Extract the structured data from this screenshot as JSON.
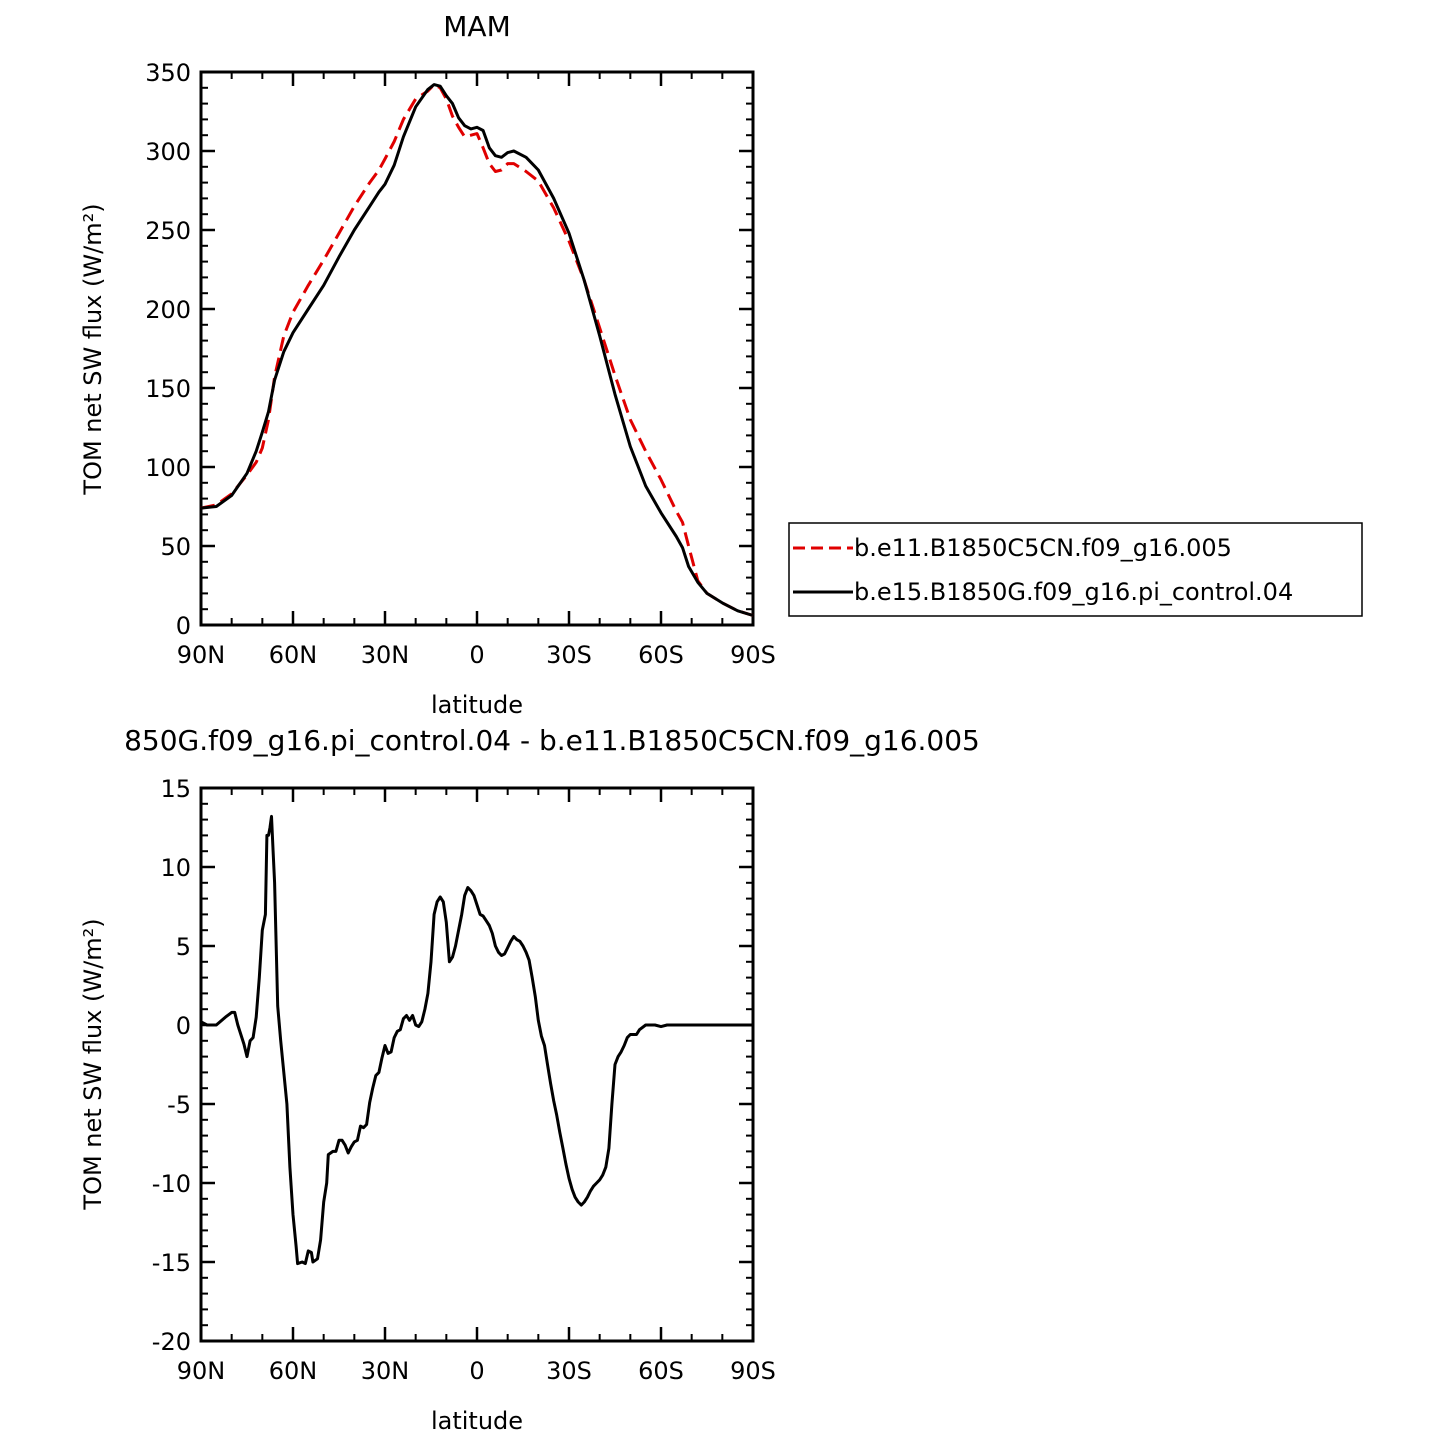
{
  "chart_data": [
    {
      "type": "line",
      "title": "MAM",
      "xlabel": "latitude",
      "ylabel": "TOM net SW flux (W/m²)",
      "x_ticks": [
        "90N",
        "60N",
        "30N",
        "0",
        "30S",
        "60S",
        "90S"
      ],
      "y_ticks": [
        "0",
        "50",
        "100",
        "150",
        "200",
        "250",
        "300",
        "350"
      ],
      "xlim": [
        90,
        -90
      ],
      "ylim": [
        0,
        350
      ],
      "legend_position": "right",
      "series": [
        {
          "name": "b.e11.B1850C5CN.f09_g16.005",
          "color": "#e00000",
          "dash": "dashed",
          "points": [
            [
              90,
              74
            ],
            [
              85,
              76
            ],
            [
              80,
              83
            ],
            [
              75,
              95
            ],
            [
              72,
              103
            ],
            [
              70,
              112
            ],
            [
              68,
              130
            ],
            [
              66,
              157
            ],
            [
              63,
              183
            ],
            [
              60,
              198
            ],
            [
              55,
              215
            ],
            [
              50,
              231
            ],
            [
              45,
              248
            ],
            [
              40,
              265
            ],
            [
              35,
              280
            ],
            [
              32,
              288
            ],
            [
              30,
              295
            ],
            [
              27,
              306
            ],
            [
              24,
              320
            ],
            [
              20,
              333
            ],
            [
              16,
              338
            ],
            [
              14,
              342
            ],
            [
              12,
              340
            ],
            [
              10,
              333
            ],
            [
              8,
              322
            ],
            [
              6,
              315
            ],
            [
              4,
              309
            ],
            [
              0,
              311
            ],
            [
              -2,
              302
            ],
            [
              -4,
              292
            ],
            [
              -6,
              287
            ],
            [
              -8,
              288
            ],
            [
              -10,
              292
            ],
            [
              -12,
              292
            ],
            [
              -16,
              287
            ],
            [
              -20,
              281
            ],
            [
              -25,
              264
            ],
            [
              -30,
              243
            ],
            [
              -35,
              218
            ],
            [
              -40,
              188
            ],
            [
              -45,
              158
            ],
            [
              -50,
              130
            ],
            [
              -55,
              110
            ],
            [
              -60,
              92
            ],
            [
              -65,
              72
            ],
            [
              -67,
              65
            ],
            [
              -69,
              50
            ],
            [
              -72,
              28
            ],
            [
              -75,
              20
            ],
            [
              -80,
              14
            ],
            [
              -85,
              9
            ],
            [
              -90,
              6
            ]
          ]
        },
        {
          "name": "b.e15.B1850G.f09_g16.pi_control.04",
          "color": "#000000",
          "dash": "solid",
          "points": [
            [
              90,
              74
            ],
            [
              85,
              75
            ],
            [
              80,
              82
            ],
            [
              75,
              96
            ],
            [
              72,
              110
            ],
            [
              70,
              122
            ],
            [
              68,
              135
            ],
            [
              66,
              155
            ],
            [
              63,
              173
            ],
            [
              60,
              185
            ],
            [
              55,
              200
            ],
            [
              50,
              215
            ],
            [
              45,
              233
            ],
            [
              40,
              250
            ],
            [
              35,
              265
            ],
            [
              32,
              274
            ],
            [
              30,
              279
            ],
            [
              27,
              291
            ],
            [
              24,
              309
            ],
            [
              20,
              328
            ],
            [
              16,
              339
            ],
            [
              14,
              342
            ],
            [
              12,
              341
            ],
            [
              10,
              335
            ],
            [
              8,
              330
            ],
            [
              6,
              321
            ],
            [
              4,
              316
            ],
            [
              2,
              314
            ],
            [
              0,
              315
            ],
            [
              -2,
              313
            ],
            [
              -4,
              302
            ],
            [
              -6,
              297
            ],
            [
              -8,
              296
            ],
            [
              -10,
              299
            ],
            [
              -12,
              300
            ],
            [
              -16,
              296
            ],
            [
              -20,
              288
            ],
            [
              -25,
              270
            ],
            [
              -30,
              248
            ],
            [
              -35,
              218
            ],
            [
              -40,
              183
            ],
            [
              -45,
              146
            ],
            [
              -50,
              113
            ],
            [
              -55,
              88
            ],
            [
              -60,
              71
            ],
            [
              -65,
              56
            ],
            [
              -67,
              49
            ],
            [
              -69,
              37
            ],
            [
              -72,
              27
            ],
            [
              -75,
              20
            ],
            [
              -80,
              14
            ],
            [
              -85,
              9
            ],
            [
              -90,
              6
            ]
          ]
        }
      ]
    },
    {
      "type": "line",
      "title": "850G.f09_g16.pi_control.04 - b.e11.B1850C5CN.f09_g16.005",
      "xlabel": "latitude",
      "ylabel": "TOM net SW flux (W/m²)",
      "x_ticks": [
        "90N",
        "60N",
        "30N",
        "0",
        "30S",
        "60S",
        "90S"
      ],
      "y_ticks": [
        "15",
        "10",
        "5",
        "0",
        "-5",
        "-10",
        "-15",
        "-20"
      ],
      "xlim": [
        90,
        -90
      ],
      "ylim": [
        -20,
        15
      ],
      "series": [
        {
          "color": "#000000",
          "dash": "solid",
          "points": [
            [
              90,
              0.2
            ],
            [
              88,
              0
            ],
            [
              85,
              0
            ],
            [
              82,
              0.5
            ],
            [
              80,
              0.8
            ],
            [
              79,
              0.8
            ],
            [
              78,
              0
            ],
            [
              76,
              -1.2
            ],
            [
              75,
              -2
            ],
            [
              74,
              -1
            ],
            [
              73,
              -0.8
            ],
            [
              72,
              0.5
            ],
            [
              71,
              3
            ],
            [
              70,
              6
            ],
            [
              69,
              7
            ],
            [
              68.5,
              12
            ],
            [
              68,
              12
            ],
            [
              67.5,
              12.5
            ],
            [
              67,
              13.2
            ],
            [
              66.5,
              11
            ],
            [
              66,
              9
            ],
            [
              65,
              1.2
            ],
            [
              64,
              -1
            ],
            [
              62,
              -5
            ],
            [
              61,
              -9
            ],
            [
              60,
              -12
            ],
            [
              59,
              -14
            ],
            [
              58.5,
              -15.1
            ],
            [
              57,
              -15
            ],
            [
              56,
              -15.1
            ],
            [
              55,
              -14.3
            ],
            [
              54,
              -14.4
            ],
            [
              53.5,
              -15
            ],
            [
              52,
              -14.8
            ],
            [
              51,
              -13.6
            ],
            [
              50,
              -11.2
            ],
            [
              49,
              -10
            ],
            [
              48.5,
              -8.2
            ],
            [
              47,
              -8
            ],
            [
              46,
              -8
            ],
            [
              45,
              -7.3
            ],
            [
              44,
              -7.3
            ],
            [
              43,
              -7.6
            ],
            [
              42,
              -8.1
            ],
            [
              41,
              -7.7
            ],
            [
              40,
              -7.4
            ],
            [
              39,
              -7.3
            ],
            [
              38,
              -6.4
            ],
            [
              37,
              -6.5
            ],
            [
              36,
              -6.3
            ],
            [
              35,
              -4.9
            ],
            [
              34,
              -4
            ],
            [
              33,
              -3.2
            ],
            [
              32,
              -3
            ],
            [
              31,
              -2.1
            ],
            [
              30,
              -1.3
            ],
            [
              29,
              -1.8
            ],
            [
              28,
              -1.7
            ],
            [
              27,
              -0.8
            ],
            [
              26,
              -0.4
            ],
            [
              25,
              -0.3
            ],
            [
              24,
              0.4
            ],
            [
              23,
              0.6
            ],
            [
              22,
              0.3
            ],
            [
              21,
              0.6
            ],
            [
              20,
              0
            ],
            [
              19,
              -0.1
            ],
            [
              18,
              0.2
            ],
            [
              17,
              1
            ],
            [
              16,
              2
            ],
            [
              15,
              4
            ],
            [
              14,
              7
            ],
            [
              13,
              7.8
            ],
            [
              12,
              8.1
            ],
            [
              11,
              7.8
            ],
            [
              10,
              6.5
            ],
            [
              9,
              4
            ],
            [
              8,
              4.3
            ],
            [
              7,
              5
            ],
            [
              6,
              6
            ],
            [
              5,
              7
            ],
            [
              4,
              8.2
            ],
            [
              3,
              8.7
            ],
            [
              2,
              8.5
            ],
            [
              1,
              8.2
            ],
            [
              0,
              7.6
            ],
            [
              -1,
              7
            ],
            [
              -2,
              6.9
            ],
            [
              -3,
              6.6
            ],
            [
              -4,
              6.3
            ],
            [
              -5,
              5.8
            ],
            [
              -6,
              5
            ],
            [
              -7,
              4.6
            ],
            [
              -8,
              4.4
            ],
            [
              -9,
              4.5
            ],
            [
              -10,
              4.9
            ],
            [
              -11,
              5.3
            ],
            [
              -12,
              5.6
            ],
            [
              -13,
              5.4
            ],
            [
              -14,
              5.3
            ],
            [
              -15,
              5
            ],
            [
              -16,
              4.6
            ],
            [
              -17,
              4.1
            ],
            [
              -18,
              3
            ],
            [
              -19,
              1.8
            ],
            [
              -20,
              0.3
            ],
            [
              -21,
              -0.7
            ],
            [
              -22,
              -1.3
            ],
            [
              -23,
              -2.5
            ],
            [
              -24,
              -3.7
            ],
            [
              -25,
              -4.8
            ],
            [
              -26,
              -5.7
            ],
            [
              -27,
              -6.8
            ],
            [
              -28,
              -7.8
            ],
            [
              -29,
              -8.8
            ],
            [
              -30,
              -9.7
            ],
            [
              -31,
              -10.4
            ],
            [
              -32,
              -10.9
            ],
            [
              -33,
              -11.2
            ],
            [
              -34,
              -11.4
            ],
            [
              -35,
              -11.2
            ],
            [
              -36,
              -10.9
            ],
            [
              -37,
              -10.5
            ],
            [
              -38,
              -10.2
            ],
            [
              -39,
              -10
            ],
            [
              -40,
              -9.8
            ],
            [
              -41,
              -9.5
            ],
            [
              -42,
              -9
            ],
            [
              -43,
              -7.8
            ],
            [
              -44,
              -5
            ],
            [
              -45,
              -2.5
            ],
            [
              -46,
              -2
            ],
            [
              -47,
              -1.7
            ],
            [
              -48,
              -1.3
            ],
            [
              -49,
              -0.8
            ],
            [
              -50,
              -0.6
            ],
            [
              -52,
              -0.6
            ],
            [
              -53,
              -0.3
            ],
            [
              -55,
              0
            ],
            [
              -58,
              0
            ],
            [
              -60,
              -0.1
            ],
            [
              -62,
              0
            ],
            [
              -65,
              0
            ],
            [
              -70,
              0
            ],
            [
              -75,
              0
            ],
            [
              -80,
              0
            ],
            [
              -85,
              0
            ],
            [
              -90,
              0
            ]
          ]
        }
      ]
    }
  ]
}
